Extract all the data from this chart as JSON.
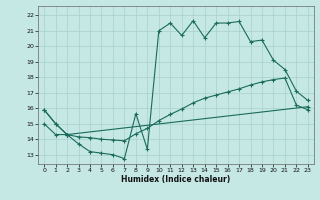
{
  "xlabel": "Humidex (Indice chaleur)",
  "bg_color": "#c5e8e5",
  "grid_color": "#a8d0cc",
  "line_color": "#1a6b5a",
  "xlim": [
    -0.5,
    23.5
  ],
  "ylim": [
    12.4,
    22.6
  ],
  "yticks": [
    13,
    14,
    15,
    16,
    17,
    18,
    19,
    20,
    21,
    22
  ],
  "xticks": [
    0,
    1,
    2,
    3,
    4,
    5,
    6,
    7,
    8,
    9,
    10,
    11,
    12,
    13,
    14,
    15,
    16,
    17,
    18,
    19,
    20,
    21,
    22,
    23
  ],
  "s1x": [
    0,
    1,
    2,
    3,
    4,
    5,
    6,
    7,
    8,
    9,
    10,
    11,
    12,
    13,
    14,
    15,
    16,
    17,
    18,
    19,
    20,
    21,
    22,
    23
  ],
  "s1y": [
    15.9,
    15.0,
    14.3,
    13.7,
    13.2,
    13.1,
    13.0,
    12.75,
    15.65,
    13.35,
    21.0,
    21.5,
    20.7,
    21.65,
    20.55,
    21.5,
    21.5,
    21.6,
    20.3,
    20.4,
    19.1,
    18.5,
    17.1,
    16.5
  ],
  "s2x": [
    0,
    1,
    2,
    3,
    4,
    5,
    6,
    7,
    8,
    9,
    10,
    11,
    12,
    13,
    14,
    15,
    16,
    17,
    18,
    19,
    20,
    21,
    22,
    23
  ],
  "s2y": [
    15.9,
    15.0,
    14.3,
    14.15,
    14.1,
    14.0,
    13.95,
    13.9,
    14.35,
    14.7,
    15.2,
    15.6,
    15.95,
    16.35,
    16.65,
    16.85,
    17.05,
    17.25,
    17.5,
    17.7,
    17.85,
    17.95,
    16.2,
    15.9
  ],
  "s3x": [
    0,
    1,
    2,
    23
  ],
  "s3y": [
    15.0,
    14.3,
    14.3,
    16.1
  ]
}
